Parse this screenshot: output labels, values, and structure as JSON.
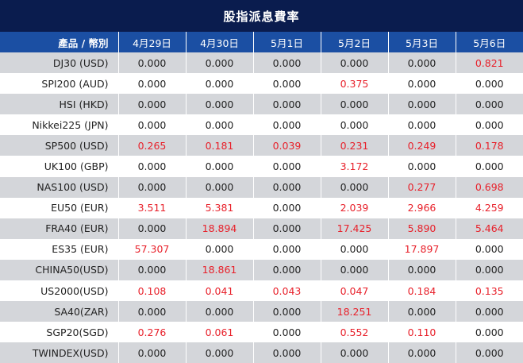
{
  "title": "股指派息費率",
  "header": {
    "product_label": "產品 / 幣別",
    "dates": [
      "4月29日",
      "4月30日",
      "5月1日",
      "5月2日",
      "5月3日",
      "5月6日"
    ]
  },
  "colors": {
    "title_bg": "#0a1c4e",
    "header_bg": "#1b4fa3",
    "row_shaded": "#d4d6da",
    "row_plain": "#ffffff",
    "value_black": "#222222",
    "value_red": "#e8202a"
  },
  "rows": [
    {
      "product": "DJ30 (USD)",
      "values": [
        "0.000",
        "0.000",
        "0.000",
        "0.000",
        "0.000",
        "0.821"
      ],
      "red": [
        false,
        false,
        false,
        false,
        false,
        true
      ]
    },
    {
      "product": "SPI200 (AUD)",
      "values": [
        "0.000",
        "0.000",
        "0.000",
        "0.375",
        "0.000",
        "0.000"
      ],
      "red": [
        false,
        false,
        false,
        true,
        false,
        false
      ]
    },
    {
      "product": "HSI (HKD)",
      "values": [
        "0.000",
        "0.000",
        "0.000",
        "0.000",
        "0.000",
        "0.000"
      ],
      "red": [
        false,
        false,
        false,
        false,
        false,
        false
      ]
    },
    {
      "product": "Nikkei225 (JPN)",
      "values": [
        "0.000",
        "0.000",
        "0.000",
        "0.000",
        "0.000",
        "0.000"
      ],
      "red": [
        false,
        false,
        false,
        false,
        false,
        false
      ]
    },
    {
      "product": "SP500 (USD)",
      "values": [
        "0.265",
        "0.181",
        "0.039",
        "0.231",
        "0.249",
        "0.178"
      ],
      "red": [
        true,
        true,
        true,
        true,
        true,
        true
      ]
    },
    {
      "product": "UK100 (GBP)",
      "values": [
        "0.000",
        "0.000",
        "0.000",
        "3.172",
        "0.000",
        "0.000"
      ],
      "red": [
        false,
        false,
        false,
        true,
        false,
        false
      ]
    },
    {
      "product": "NAS100 (USD)",
      "values": [
        "0.000",
        "0.000",
        "0.000",
        "0.000",
        "0.277",
        "0.698"
      ],
      "red": [
        false,
        false,
        false,
        false,
        true,
        true
      ]
    },
    {
      "product": "EU50 (EUR)",
      "values": [
        "3.511",
        "5.381",
        "0.000",
        "2.039",
        "2.966",
        "4.259"
      ],
      "red": [
        true,
        true,
        false,
        true,
        true,
        true
      ]
    },
    {
      "product": "FRA40 (EUR)",
      "values": [
        "0.000",
        "18.894",
        "0.000",
        "17.425",
        "5.890",
        "5.464"
      ],
      "red": [
        false,
        true,
        false,
        true,
        true,
        true
      ]
    },
    {
      "product": "ES35 (EUR)",
      "values": [
        "57.307",
        "0.000",
        "0.000",
        "0.000",
        "17.897",
        "0.000"
      ],
      "red": [
        true,
        false,
        false,
        false,
        true,
        false
      ]
    },
    {
      "product": "CHINA50(USD)",
      "values": [
        "0.000",
        "18.861",
        "0.000",
        "0.000",
        "0.000",
        "0.000"
      ],
      "red": [
        false,
        true,
        false,
        false,
        false,
        false
      ]
    },
    {
      "product": "US2000(USD)",
      "values": [
        "0.108",
        "0.041",
        "0.043",
        "0.047",
        "0.184",
        "0.135"
      ],
      "red": [
        true,
        true,
        true,
        true,
        true,
        true
      ]
    },
    {
      "product": "SA40(ZAR)",
      "values": [
        "0.000",
        "0.000",
        "0.000",
        "18.251",
        "0.000",
        "0.000"
      ],
      "red": [
        false,
        false,
        false,
        true,
        false,
        false
      ]
    },
    {
      "product": "SGP20(SGD)",
      "values": [
        "0.276",
        "0.061",
        "0.000",
        "0.552",
        "0.110",
        "0.000"
      ],
      "red": [
        true,
        true,
        false,
        true,
        true,
        false
      ]
    },
    {
      "product": "TWINDEX(USD)",
      "values": [
        "0.000",
        "0.000",
        "0.000",
        "0.000",
        "0.000",
        "0.000"
      ],
      "red": [
        false,
        false,
        false,
        false,
        false,
        false
      ]
    }
  ]
}
